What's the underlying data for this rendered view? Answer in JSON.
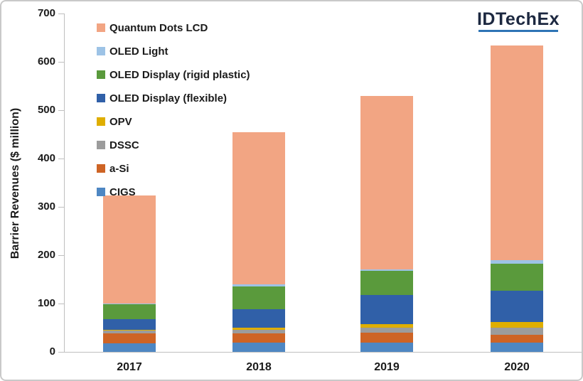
{
  "branding": {
    "logo_text": "IDTechEx",
    "logo_text_color": "#1c2840",
    "logo_underline_color": "#2e74b5"
  },
  "chart_data": {
    "type": "bar",
    "stacked": true,
    "title": "",
    "xlabel": "",
    "ylabel": "Barrier Revenues ($ million)",
    "ylim": [
      0,
      700
    ],
    "yticks": [
      0,
      100,
      200,
      300,
      400,
      500,
      600,
      700
    ],
    "grid": false,
    "legend_position": "upper-left-inside",
    "categories": [
      "2017",
      "2018",
      "2019",
      "2020"
    ],
    "series": [
      {
        "name": "CIGS",
        "color": "#4e87c3",
        "values": [
          18,
          19,
          19,
          19
        ]
      },
      {
        "name": "a-Si",
        "color": "#ce6425",
        "values": [
          20,
          19,
          20,
          16
        ]
      },
      {
        "name": "DSSC",
        "color": "#9c9c9c",
        "values": [
          6,
          8,
          11,
          15
        ]
      },
      {
        "name": "OPV",
        "color": "#dfae00",
        "values": [
          2,
          4,
          8,
          12
        ]
      },
      {
        "name": "OLED Display (flexible)",
        "color": "#3060a8",
        "values": [
          22,
          38,
          60,
          65
        ]
      },
      {
        "name": "OLED Display (rigid plastic)",
        "color": "#5a9a3c",
        "values": [
          30,
          48,
          49,
          56
        ]
      },
      {
        "name": "OLED Light",
        "color": "#9dc3e6",
        "values": [
          2,
          3,
          4,
          6
        ]
      },
      {
        "name": "Quantum Dots LCD",
        "color": "#f2a583",
        "values": [
          224,
          315,
          359,
          445
        ]
      }
    ],
    "totals": [
      324,
      455,
      530,
      634
    ],
    "legend_order_top_to_bottom": [
      "Quantum Dots LCD",
      "OLED Light",
      "OLED Display (rigid plastic)",
      "OLED Display (flexible)",
      "OPV",
      "DSSC",
      "a-Si",
      "CIGS"
    ],
    "axis_color": "#bfbfbf",
    "text_color": "#1a1a1a"
  }
}
